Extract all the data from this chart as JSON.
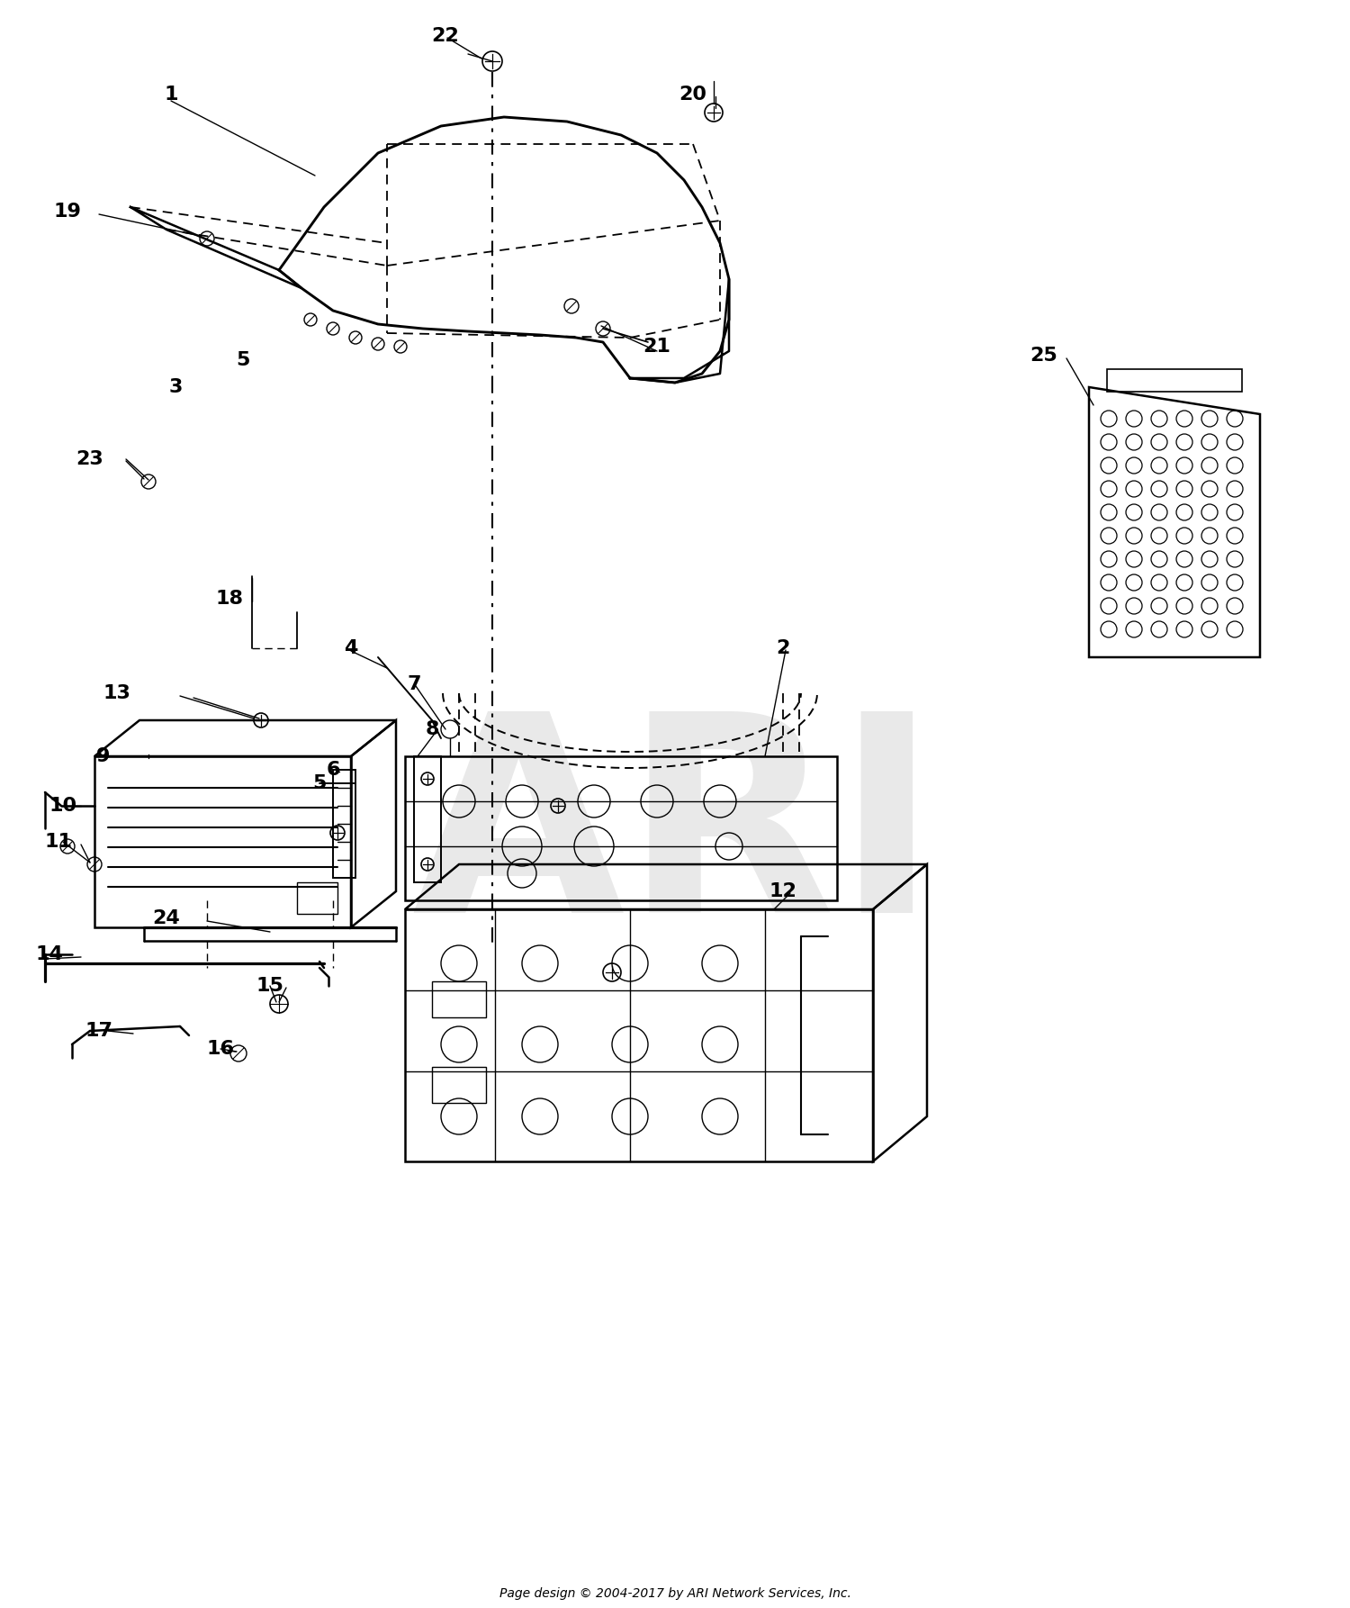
{
  "footer": "Page design © 2004-2017 by ARI Network Services, Inc.",
  "background_color": "#ffffff",
  "figsize": [
    15.0,
    17.86
  ],
  "dpi": 100,
  "watermark": "ARI",
  "label_fontsize": 16,
  "labels": [
    [
      "1",
      190,
      105
    ],
    [
      "2",
      870,
      720
    ],
    [
      "3",
      195,
      430
    ],
    [
      "4",
      390,
      720
    ],
    [
      "5",
      270,
      400
    ],
    [
      "5",
      355,
      870
    ],
    [
      "6",
      370,
      855
    ],
    [
      "7",
      460,
      760
    ],
    [
      "8",
      480,
      810
    ],
    [
      "9",
      115,
      840
    ],
    [
      "10",
      70,
      895
    ],
    [
      "11",
      65,
      935
    ],
    [
      "12",
      870,
      990
    ],
    [
      "13",
      130,
      770
    ],
    [
      "14",
      55,
      1060
    ],
    [
      "15",
      300,
      1095
    ],
    [
      "16",
      245,
      1165
    ],
    [
      "17",
      110,
      1145
    ],
    [
      "18",
      255,
      665
    ],
    [
      "19",
      75,
      235
    ],
    [
      "20",
      770,
      105
    ],
    [
      "21",
      730,
      385
    ],
    [
      "22",
      495,
      40
    ],
    [
      "23",
      100,
      510
    ],
    [
      "24",
      185,
      1020
    ],
    [
      "25",
      1160,
      395
    ]
  ]
}
